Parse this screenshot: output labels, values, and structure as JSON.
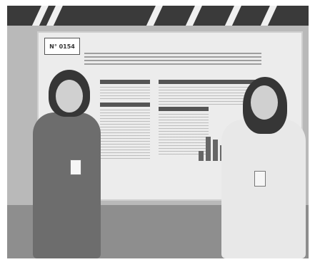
{
  "poster": {
    "board_number": "N° 0154"
  },
  "colors": {
    "background": "#ffffff",
    "poster": "#ececec"
  }
}
